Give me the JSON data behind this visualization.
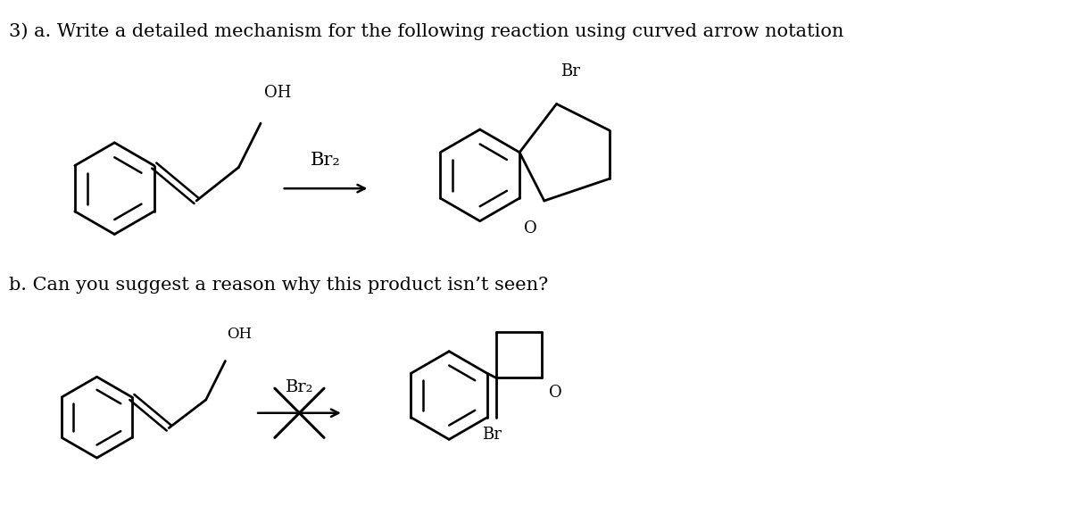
{
  "title_a": "3) a. Write a detailed mechanism for the following reaction using curved arrow notation",
  "title_b": "b. Can you suggest a reason why this product isn’t seen?",
  "reagent_a": "Br₂",
  "reagent_b": "Br₂",
  "label_br_top": "Br",
  "label_o_top": "O",
  "label_oh_top": "OH",
  "label_br_bot": "Br",
  "label_o_bot": "O",
  "label_oh_bot": "OH",
  "bg_color": "#ffffff",
  "line_color": "#000000",
  "fontsize_title": 15,
  "fontsize_label": 13
}
